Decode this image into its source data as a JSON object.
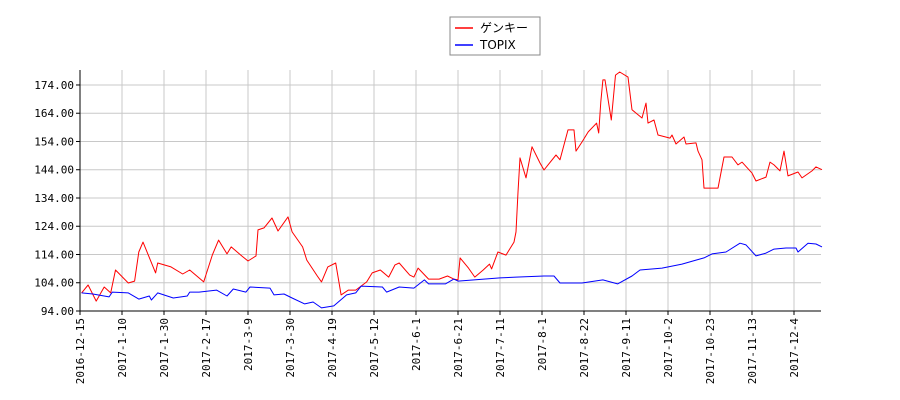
{
  "chart_data": {
    "type": "line",
    "title": "",
    "xlabel": "",
    "ylabel": "",
    "ylim": [
      94,
      179.3
    ],
    "xlim": [
      "2016-12-15",
      "2017-12-18"
    ],
    "grid": true,
    "legend_position": "top-center",
    "y_ticks": [
      "94.00",
      "104.00",
      "114.00",
      "124.00",
      "134.00",
      "144.00",
      "154.00",
      "164.00",
      "174.00"
    ],
    "y_tick_values": [
      94,
      104,
      114,
      124,
      134,
      144,
      154,
      164,
      174
    ],
    "x_ticks": [
      "2016-12-15",
      "2017-1-10",
      "2017-1-30",
      "2017-2-17",
      "2017-3-9",
      "2017-3-30",
      "2017-4-19",
      "2017-5-12",
      "2017-6-1",
      "2017-6-21",
      "2017-7-11",
      "2017-8-1",
      "2017-8-22",
      "2017-9-11",
      "2017-10-2",
      "2017-10-23",
      "2017-11-13",
      "2017-12-4"
    ],
    "series": [
      {
        "name": "ゲンキー",
        "color": "#ff0000",
        "points": [
          [
            "2016-12-16",
            100.4
          ],
          [
            "2016-12-20",
            103.2
          ],
          [
            "2016-12-25",
            97.5
          ],
          [
            "2016-12-30",
            102.5
          ],
          [
            "2017-01-03",
            100.4
          ],
          [
            "2017-01-06",
            108.5
          ],
          [
            "2017-01-13",
            103.9
          ],
          [
            "2017-01-16",
            104.6
          ],
          [
            "2017-01-18",
            114.9
          ],
          [
            "2017-01-20",
            118.4
          ],
          [
            "2017-01-26",
            107.5
          ],
          [
            "2017-01-27",
            111.0
          ],
          [
            "2017-02-02",
            109.6
          ],
          [
            "2017-02-07",
            107.1
          ],
          [
            "2017-02-10",
            108.5
          ],
          [
            "2017-02-16",
            104.3
          ],
          [
            "2017-02-20",
            113.8
          ],
          [
            "2017-02-23",
            119.1
          ],
          [
            "2017-02-27",
            114.2
          ],
          [
            "2017-03-01",
            116.7
          ],
          [
            "2017-03-06",
            113.5
          ],
          [
            "2017-03-09",
            111.7
          ],
          [
            "2017-03-13",
            113.5
          ],
          [
            "2017-03-14",
            122.7
          ],
          [
            "2017-03-17",
            123.4
          ],
          [
            "2017-03-21",
            126.9
          ],
          [
            "2017-03-24",
            122.3
          ],
          [
            "2017-03-29",
            127.3
          ],
          [
            "2017-03-31",
            122.0
          ],
          [
            "2017-04-05",
            116.7
          ],
          [
            "2017-04-07",
            112.0
          ],
          [
            "2017-04-12",
            106.4
          ],
          [
            "2017-04-14",
            104.3
          ],
          [
            "2017-04-17",
            109.6
          ],
          [
            "2017-04-21",
            111.0
          ],
          [
            "2017-04-24",
            99.7
          ],
          [
            "2017-04-28",
            101.4
          ],
          [
            "2017-05-02",
            101.4
          ],
          [
            "2017-05-08",
            104.3
          ],
          [
            "2017-05-11",
            107.5
          ],
          [
            "2017-05-15",
            108.5
          ],
          [
            "2017-05-19",
            106.0
          ],
          [
            "2017-05-22",
            110.3
          ],
          [
            "2017-05-24",
            111.0
          ],
          [
            "2017-05-29",
            106.7
          ],
          [
            "2017-05-31",
            106.0
          ],
          [
            "2017-06-02",
            109.2
          ],
          [
            "2017-06-07",
            105.3
          ],
          [
            "2017-06-12",
            105.3
          ],
          [
            "2017-06-16",
            106.4
          ],
          [
            "2017-06-19",
            105.3
          ],
          [
            "2017-06-21",
            105.0
          ],
          [
            "2017-06-22",
            112.8
          ],
          [
            "2017-06-26",
            109.2
          ],
          [
            "2017-06-29",
            106.0
          ],
          [
            "2017-07-03",
            108.5
          ],
          [
            "2017-07-06",
            110.6
          ],
          [
            "2017-07-07",
            108.9
          ],
          [
            "2017-07-10",
            114.9
          ],
          [
            "2017-07-14",
            113.8
          ],
          [
            "2017-07-18",
            118.4
          ],
          [
            "2017-07-19",
            122.0
          ],
          [
            "2017-07-20",
            136.1
          ],
          [
            "2017-07-21",
            148.2
          ],
          [
            "2017-07-24",
            141.1
          ],
          [
            "2017-07-27",
            152.1
          ],
          [
            "2017-07-31",
            146.4
          ],
          [
            "2017-08-02",
            143.9
          ],
          [
            "2017-08-04",
            145.7
          ],
          [
            "2017-08-08",
            149.2
          ],
          [
            "2017-08-10",
            147.5
          ],
          [
            "2017-08-14",
            158.1
          ],
          [
            "2017-08-17",
            158.1
          ],
          [
            "2017-08-18",
            150.6
          ],
          [
            "2017-08-21",
            153.8
          ],
          [
            "2017-08-24",
            157.4
          ],
          [
            "2017-08-28",
            160.5
          ],
          [
            "2017-08-29",
            157.0
          ],
          [
            "2017-08-30",
            168.0
          ],
          [
            "2017-08-31",
            175.8
          ],
          [
            "2017-09-01",
            175.8
          ],
          [
            "2017-09-04",
            161.6
          ],
          [
            "2017-09-06",
            177.5
          ],
          [
            "2017-09-08",
            178.6
          ],
          [
            "2017-09-12",
            176.8
          ],
          [
            "2017-09-14",
            165.2
          ],
          [
            "2017-09-19",
            162.3
          ],
          [
            "2017-09-21",
            167.6
          ],
          [
            "2017-09-22",
            160.5
          ],
          [
            "2017-09-25",
            161.6
          ],
          [
            "2017-09-27",
            156.3
          ],
          [
            "2017-10-03",
            155.2
          ],
          [
            "2017-10-04",
            156.3
          ],
          [
            "2017-10-06",
            153.1
          ],
          [
            "2017-10-10",
            155.6
          ],
          [
            "2017-10-11",
            153.1
          ],
          [
            "2017-10-16",
            153.5
          ],
          [
            "2017-10-17",
            150.6
          ],
          [
            "2017-10-19",
            147.5
          ],
          [
            "2017-10-20",
            137.5
          ],
          [
            "2017-10-27",
            137.5
          ],
          [
            "2017-10-30",
            148.5
          ],
          [
            "2017-11-03",
            148.5
          ],
          [
            "2017-11-06",
            145.7
          ],
          [
            "2017-11-08",
            146.7
          ],
          [
            "2017-11-13",
            142.8
          ],
          [
            "2017-11-15",
            140.0
          ],
          [
            "2017-11-20",
            141.4
          ],
          [
            "2017-11-22",
            146.7
          ],
          [
            "2017-11-24",
            145.7
          ],
          [
            "2017-11-27",
            143.6
          ],
          [
            "2017-11-29",
            150.6
          ],
          [
            "2017-12-01",
            141.8
          ],
          [
            "2017-12-06",
            143.2
          ],
          [
            "2017-12-08",
            141.1
          ],
          [
            "2017-12-13",
            143.6
          ],
          [
            "2017-12-15",
            145.0
          ],
          [
            "2017-12-18",
            144.0
          ]
        ]
      },
      {
        "name": "TOPIX",
        "color": "#0000ff",
        "points": [
          [
            "2016-12-16",
            100.4
          ],
          [
            "2016-12-23",
            100.0
          ],
          [
            "2017-01-02",
            99.0
          ],
          [
            "2017-01-04",
            100.7
          ],
          [
            "2017-01-13",
            100.4
          ],
          [
            "2017-01-18",
            98.2
          ],
          [
            "2017-01-23",
            99.3
          ],
          [
            "2017-01-24",
            97.9
          ],
          [
            "2017-01-27",
            100.4
          ],
          [
            "2017-02-03",
            98.6
          ],
          [
            "2017-02-09",
            99.3
          ],
          [
            "2017-02-10",
            100.7
          ],
          [
            "2017-02-14",
            100.7
          ],
          [
            "2017-02-22",
            101.4
          ],
          [
            "2017-02-27",
            99.3
          ],
          [
            "2017-03-02",
            101.8
          ],
          [
            "2017-03-08",
            100.7
          ],
          [
            "2017-03-10",
            102.5
          ],
          [
            "2017-03-20",
            102.1
          ],
          [
            "2017-03-22",
            99.7
          ],
          [
            "2017-03-27",
            100.0
          ],
          [
            "2017-03-31",
            98.6
          ],
          [
            "2017-04-06",
            96.5
          ],
          [
            "2017-04-10",
            97.2
          ],
          [
            "2017-04-14",
            95.1
          ],
          [
            "2017-04-20",
            95.8
          ],
          [
            "2017-04-27",
            99.7
          ],
          [
            "2017-05-02",
            100.4
          ],
          [
            "2017-05-05",
            102.8
          ],
          [
            "2017-05-16",
            102.5
          ],
          [
            "2017-05-18",
            100.7
          ],
          [
            "2017-05-24",
            102.5
          ],
          [
            "2017-05-31",
            102.1
          ],
          [
            "2017-06-05",
            105.0
          ],
          [
            "2017-06-07",
            103.6
          ],
          [
            "2017-06-15",
            103.6
          ],
          [
            "2017-06-19",
            105.3
          ],
          [
            "2017-06-21",
            104.6
          ],
          [
            "2017-07-11",
            105.7
          ],
          [
            "2017-07-19",
            106.0
          ],
          [
            "2017-08-02",
            106.4
          ],
          [
            "2017-08-07",
            106.4
          ],
          [
            "2017-08-10",
            103.9
          ],
          [
            "2017-08-21",
            103.9
          ],
          [
            "2017-08-31",
            105.0
          ],
          [
            "2017-09-07",
            103.6
          ],
          [
            "2017-09-14",
            106.4
          ],
          [
            "2017-09-18",
            108.5
          ],
          [
            "2017-09-29",
            109.2
          ],
          [
            "2017-10-09",
            110.6
          ],
          [
            "2017-10-16",
            112.0
          ],
          [
            "2017-10-20",
            112.8
          ],
          [
            "2017-10-24",
            114.2
          ],
          [
            "2017-10-31",
            114.9
          ],
          [
            "2017-11-07",
            118.0
          ],
          [
            "2017-11-10",
            117.4
          ],
          [
            "2017-11-15",
            113.5
          ],
          [
            "2017-11-20",
            114.5
          ],
          [
            "2017-11-24",
            115.9
          ],
          [
            "2017-11-30",
            116.3
          ],
          [
            "2017-12-05",
            116.3
          ],
          [
            "2017-12-06",
            114.9
          ],
          [
            "2017-12-11",
            118.0
          ],
          [
            "2017-12-15",
            117.7
          ],
          [
            "2017-12-18",
            116.7
          ]
        ]
      }
    ]
  }
}
